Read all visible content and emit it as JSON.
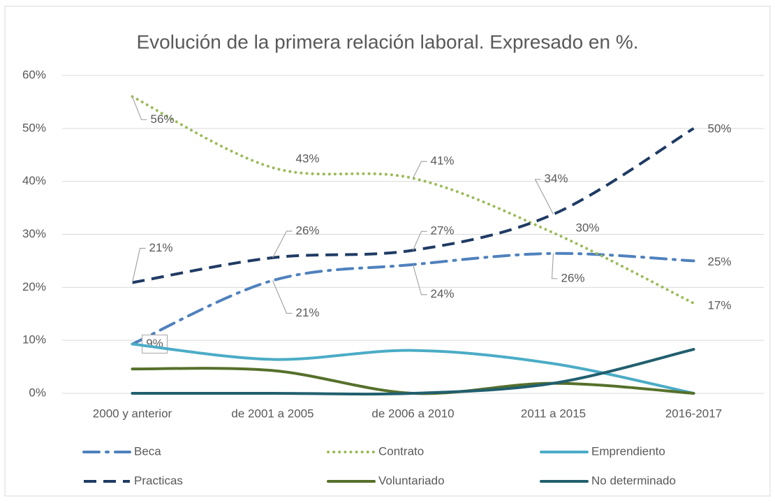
{
  "chart_data": {
    "type": "line",
    "title": "Evolución de la primera relación laboral. Expresado en %.",
    "categories": [
      "2000 y anterior",
      "de 2001 a 2005",
      "de 2006 a 2010",
      "2011 a 2015",
      "2016-2017"
    ],
    "ylim": [
      0,
      60
    ],
    "yticks": [
      {
        "value": 0,
        "label": "0%"
      },
      {
        "value": 10,
        "label": "10%"
      },
      {
        "value": 20,
        "label": "20%"
      },
      {
        "value": 30,
        "label": "30%"
      },
      {
        "value": 40,
        "label": "40%"
      },
      {
        "value": 50,
        "label": "50%"
      },
      {
        "value": 60,
        "label": "60%"
      }
    ],
    "grid": true,
    "legend": "bottom",
    "series": [
      {
        "name": "Beca",
        "color": "#4f81bd",
        "values": [
          9.3,
          21.3,
          24.3,
          26.4,
          25
        ],
        "value_labels": [
          "9%",
          "21%",
          "24%",
          "26%",
          "25%"
        ]
      },
      {
        "name": "Contrato",
        "color": "#9bbb59",
        "values": [
          56,
          42.6,
          40.6,
          30.3,
          17
        ],
        "value_labels": [
          "56%",
          "43%",
          "41%",
          "30%",
          "17%"
        ]
      },
      {
        "name": "Emprendiento",
        "color": "#4bacc6",
        "values": [
          9.3,
          6.4,
          8.1,
          5.6,
          0
        ]
      },
      {
        "name": "Practicas",
        "color": "#1f3b64",
        "values": [
          20.9,
          25.6,
          27,
          33.8,
          50
        ],
        "value_labels": [
          "21%",
          "26%",
          "27%",
          "34%",
          "50%"
        ]
      },
      {
        "name": "Voluntariado",
        "color": "#56702b",
        "values": [
          4.6,
          4.3,
          0,
          1.9,
          0
        ]
      },
      {
        "name": "No determinado",
        "color": "#215f6e",
        "values": [
          0,
          0,
          0,
          1.9,
          8.3
        ]
      }
    ]
  }
}
